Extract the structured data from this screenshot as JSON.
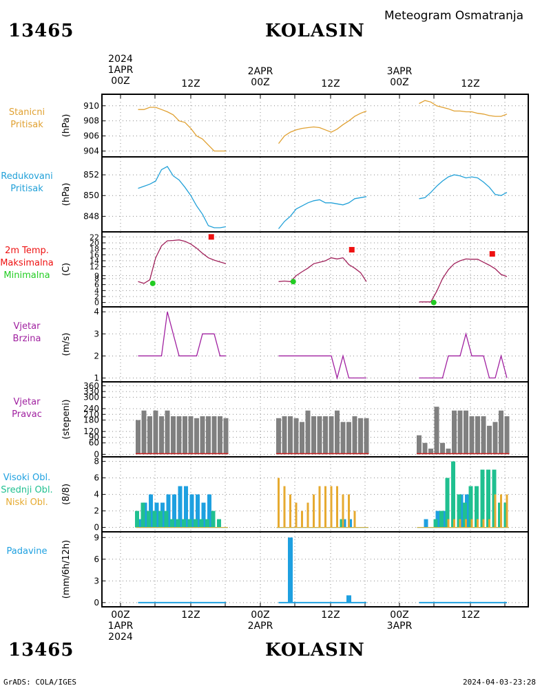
{
  "header": {
    "station_id": "13465",
    "station_name": "KOLASIN",
    "subtitle": "Meteogram Osmatranja"
  },
  "footer": {
    "credit": "GrADS: COLA/IGES",
    "timestamp": "2024-04-03-23:28"
  },
  "time_axis": {
    "top_labels": [
      {
        "lines": [
          "2024",
          "1APR",
          "00Z"
        ]
      },
      {
        "lines": [
          "12Z"
        ]
      },
      {
        "lines": [
          "2APR",
          "00Z"
        ]
      },
      {
        "lines": [
          "12Z"
        ]
      },
      {
        "lines": [
          "3APR",
          "00Z"
        ]
      },
      {
        "lines": [
          "12Z"
        ]
      }
    ],
    "bottom_labels": [
      {
        "lines": [
          "00Z",
          "1APR",
          "2024"
        ]
      },
      {
        "lines": [
          "12Z"
        ]
      },
      {
        "lines": [
          "00Z",
          "2APR"
        ]
      },
      {
        "lines": [
          "12Z"
        ]
      },
      {
        "lines": [
          "00Z",
          "3APR"
        ]
      },
      {
        "lines": [
          "12Z"
        ]
      }
    ]
  },
  "colors": {
    "station_pressure": "#e0a030",
    "reduced_pressure": "#20a0d8",
    "temperature": "#a0205a",
    "tmax": "#ee1111",
    "tmin": "#22cc22",
    "wind": "#a020a0",
    "wind_direction_bar": "#808080",
    "high_cloud": "#1ea0e0",
    "mid_cloud": "#20c090",
    "low_cloud": "#e6aa30",
    "precip": "#1ea0e0"
  },
  "chart_data": [
    {
      "type": "line",
      "label_lines": [
        "Stanicni",
        "Pritisak"
      ],
      "ylabel": "(hPa)",
      "yticks": [
        "904",
        "906",
        "908",
        "910"
      ],
      "ylim": [
        903.5,
        910.8
      ],
      "series": [
        {
          "x": [
            3,
            4,
            5,
            6,
            7,
            8,
            9,
            10,
            11,
            12,
            13,
            14,
            15,
            16,
            17,
            18
          ],
          "y": [
            909.5,
            909.5,
            909.8,
            909.8,
            909.5,
            909.2,
            908.8,
            908.0,
            907.8,
            907.0,
            906.0,
            905.6,
            904.8,
            904.0,
            904.0,
            904.0
          ]
        },
        {
          "x": [
            27,
            28,
            29,
            30,
            31,
            32,
            33,
            34,
            35,
            36,
            37,
            38,
            39,
            40,
            41,
            42
          ],
          "y": [
            905.0,
            906.0,
            906.5,
            906.8,
            907.0,
            907.1,
            907.2,
            907.1,
            906.8,
            906.5,
            906.9,
            907.5,
            908.0,
            908.6,
            909.0,
            909.3
          ]
        },
        {
          "x": [
            51,
            52,
            53,
            54,
            55,
            56,
            57,
            58,
            59,
            60,
            61,
            62,
            63,
            64,
            65,
            66
          ],
          "y": [
            910.3,
            910.7,
            910.5,
            910.0,
            909.8,
            909.6,
            909.3,
            909.3,
            909.2,
            909.2,
            909.0,
            908.9,
            908.7,
            908.6,
            908.6,
            908.9
          ]
        }
      ]
    },
    {
      "type": "line",
      "label_lines": [
        "Redukovani",
        "Pritisak"
      ],
      "ylabel": "(hPa)",
      "yticks": [
        "848",
        "850",
        "852"
      ],
      "ylim": [
        846.7,
        853.2
      ],
      "series": [
        {
          "x": [
            3,
            4,
            5,
            6,
            7,
            8,
            9,
            10,
            11,
            12,
            13,
            14,
            15,
            16,
            17,
            18
          ],
          "y": [
            850.7,
            850.9,
            851.1,
            851.4,
            852.5,
            852.8,
            851.9,
            851.5,
            850.8,
            850.0,
            849.0,
            848.2,
            847.1,
            846.9,
            846.9,
            847.0
          ]
        },
        {
          "x": [
            27,
            28,
            29,
            30,
            31,
            32,
            33,
            34,
            35,
            36,
            37,
            38,
            39,
            40,
            41,
            42
          ],
          "y": [
            846.8,
            847.5,
            848.0,
            848.7,
            849.0,
            849.3,
            849.5,
            849.6,
            849.3,
            849.3,
            849.2,
            849.1,
            849.3,
            849.7,
            849.8,
            849.9
          ]
        },
        {
          "x": [
            51,
            52,
            53,
            54,
            55,
            56,
            57,
            58,
            59,
            60,
            61,
            62,
            63,
            64,
            65,
            66
          ],
          "y": [
            849.7,
            849.8,
            850.3,
            850.9,
            851.4,
            851.8,
            852.0,
            851.9,
            851.7,
            851.8,
            851.7,
            851.3,
            850.8,
            850.1,
            850.0,
            850.3
          ]
        }
      ]
    },
    {
      "type": "line",
      "label_lines": [
        "2m Temp.",
        "Maksimalna",
        "Minimalna"
      ],
      "label_colors": [
        "#ee1111",
        "#ee1111",
        "#22cc22"
      ],
      "ylabel": "(C)",
      "yticks": [
        "0",
        "2",
        "4",
        "6",
        "8",
        "9",
        "12",
        "14",
        "16",
        "18",
        "20",
        "22"
      ],
      "ylim": [
        -1,
        23
      ],
      "series": [
        {
          "x": [
            3,
            4,
            5,
            6,
            7,
            8,
            9,
            10,
            11,
            12,
            13,
            14,
            15,
            16,
            17,
            18
          ],
          "y": [
            7.0,
            6.4,
            7.6,
            15.0,
            19.0,
            20.7,
            20.8,
            21.0,
            20.5,
            19.6,
            18.2,
            16.5,
            15.0,
            14.2,
            13.6,
            13.0
          ]
        },
        {
          "x": [
            27,
            28,
            29,
            30,
            31,
            32,
            33,
            34,
            35,
            36,
            37,
            38,
            39,
            40,
            41,
            42
          ],
          "y": [
            7.0,
            7.2,
            7.0,
            9.0,
            10.3,
            11.5,
            13.0,
            13.5,
            14.0,
            15.0,
            14.6,
            15.0,
            12.7,
            11.5,
            10.0,
            7.0
          ]
        },
        {
          "x": [
            51,
            52,
            53,
            54,
            55,
            56,
            57,
            58,
            59,
            60,
            61,
            62,
            63,
            64,
            65,
            66
          ],
          "y": [
            0.2,
            0.2,
            0.2,
            3.7,
            8.0,
            11.0,
            13.0,
            14.0,
            14.6,
            14.5,
            14.5,
            13.5,
            12.5,
            11.3,
            9.4,
            8.7
          ]
        }
      ],
      "tmax": [
        {
          "x": 15.5,
          "y": 22.0
        },
        {
          "x": 39.5,
          "y": 17.7
        },
        {
          "x": 63.5,
          "y": 16.3
        }
      ],
      "tmin": [
        {
          "x": 5.5,
          "y": 6.4
        },
        {
          "x": 29.5,
          "y": 7.0
        },
        {
          "x": 53.5,
          "y": 0.0
        }
      ]
    },
    {
      "type": "line",
      "label_lines": [
        "Vjetar",
        "Brzina"
      ],
      "ylabel": "(m/s)",
      "yticks": [
        "1",
        "2",
        "3",
        "4"
      ],
      "ylim": [
        0.95,
        4.1
      ],
      "series": [
        {
          "x": [
            3,
            4,
            5,
            6,
            7,
            8,
            9,
            10,
            11,
            12,
            13,
            14,
            15,
            16,
            17,
            18
          ],
          "y": [
            2,
            2,
            2,
            2,
            2,
            4,
            3,
            2,
            2,
            2,
            2,
            3,
            3,
            3,
            2,
            2
          ]
        },
        {
          "x": [
            27,
            28,
            29,
            30,
            31,
            32,
            33,
            34,
            35,
            36,
            37,
            38,
            39,
            40,
            41,
            42
          ],
          "y": [
            2,
            2,
            2,
            2,
            2,
            2,
            2,
            2,
            2,
            2,
            1,
            2,
            1,
            1,
            1,
            1
          ]
        },
        {
          "x": [
            51,
            52,
            53,
            54,
            55,
            56,
            57,
            58,
            59,
            60,
            61,
            62,
            63,
            64,
            65,
            66
          ],
          "y": [
            1,
            1,
            1,
            1,
            1,
            2,
            2,
            2,
            3,
            2,
            2,
            2,
            1,
            1,
            2,
            1
          ]
        }
      ]
    },
    {
      "type": "bar",
      "label_lines": [
        "Vjetar",
        "Pravac"
      ],
      "ylabel": "(stepeni)",
      "yticks": [
        "0",
        "60",
        "90",
        "120",
        "180",
        "210",
        "240",
        "300",
        "330",
        "360"
      ],
      "ylim": [
        -6,
        370
      ],
      "series": [
        {
          "x": [
            3,
            4,
            5,
            6,
            7,
            8,
            9,
            10,
            11,
            12,
            13,
            14,
            15,
            16,
            17,
            18
          ],
          "y": [
            180,
            230,
            200,
            230,
            200,
            230,
            200,
            200,
            200,
            200,
            190,
            200,
            200,
            200,
            200,
            190
          ]
        },
        {
          "x": [
            27,
            28,
            29,
            30,
            31,
            32,
            33,
            34,
            35,
            36,
            37,
            38,
            39,
            40,
            41,
            42
          ],
          "y": [
            190,
            200,
            200,
            190,
            170,
            230,
            200,
            200,
            200,
            200,
            230,
            170,
            170,
            200,
            190,
            190
          ]
        },
        {
          "x": [
            51,
            52,
            53,
            54,
            55,
            56,
            57,
            58,
            59,
            60,
            61,
            62,
            63,
            64,
            65,
            66
          ],
          "y": [
            100,
            60,
            30,
            250,
            60,
            30,
            230,
            230,
            230,
            200,
            200,
            200,
            150,
            170,
            230,
            200
          ]
        }
      ]
    },
    {
      "type": "bar",
      "label_lines": [
        "Visoki Obl.",
        "Srednji Obl.",
        "Niski Obl."
      ],
      "label_colors": [
        "#1ea0e0",
        "#20c090",
        "#e6aa30"
      ],
      "ylabel": "(8/8)",
      "yticks": [
        "0",
        "2",
        "4",
        "6",
        "8"
      ],
      "ylim": [
        -0.2,
        8.3
      ],
      "series": [
        {
          "name": "Visoki Obl.",
          "x": [
            3,
            4,
            5,
            6,
            7,
            8,
            9,
            10,
            11,
            12,
            13,
            14,
            15,
            16,
            17,
            18
          ],
          "y": [
            1,
            3,
            4,
            3,
            3,
            4,
            4,
            5,
            5,
            4,
            4,
            3,
            4,
            0,
            0,
            0
          ]
        },
        {
          "name": "Srednji Obl.",
          "x": [
            3,
            4,
            5,
            6,
            7,
            8,
            9,
            10,
            11,
            12,
            13,
            14,
            15,
            16,
            17,
            18
          ],
          "y": [
            2,
            3,
            2,
            2,
            2,
            2,
            1,
            1,
            1,
            1,
            1,
            1,
            1,
            2,
            1,
            0
          ]
        },
        {
          "name": "Niski Obl.",
          "x": [
            3,
            4,
            5,
            6,
            7,
            8,
            9,
            10,
            11,
            12,
            13,
            14,
            15,
            16,
            17,
            18
          ],
          "y": [
            0,
            0,
            0,
            0,
            0,
            0,
            0,
            0,
            0,
            0,
            0,
            0,
            0,
            0,
            0,
            0
          ]
        },
        {
          "name": "Visoki Obl.",
          "x": [
            27,
            28,
            29,
            30,
            31,
            32,
            33,
            34,
            35,
            36,
            37,
            38,
            39,
            40,
            41,
            42
          ],
          "y": [
            0,
            0,
            0,
            0,
            0,
            0,
            0,
            0,
            0,
            0,
            0,
            1,
            1,
            0,
            0,
            0
          ]
        },
        {
          "name": "Srednji Obl.",
          "x": [
            27,
            28,
            29,
            30,
            31,
            32,
            33,
            34,
            35,
            36,
            37,
            38,
            39,
            40,
            41,
            42
          ],
          "y": [
            0,
            0,
            0,
            0,
            0,
            0,
            0,
            0,
            0,
            0,
            0,
            1,
            0,
            0,
            0,
            0
          ]
        },
        {
          "name": "Niski Obl.",
          "x": [
            27,
            28,
            29,
            30,
            31,
            32,
            33,
            34,
            35,
            36,
            37,
            38,
            39,
            40,
            41,
            42
          ],
          "y": [
            6,
            5,
            4,
            3,
            2,
            3,
            4,
            5,
            5,
            5,
            5,
            4,
            4,
            2,
            0,
            0
          ]
        },
        {
          "name": "Visoki Obl.",
          "x": [
            51,
            52,
            53,
            54,
            55,
            56,
            57,
            58,
            59,
            60,
            61,
            62,
            63,
            64,
            65,
            66
          ],
          "y": [
            0,
            1,
            0,
            2,
            2,
            0,
            0,
            4,
            4,
            0,
            0,
            0,
            0,
            0,
            0,
            0
          ]
        },
        {
          "name": "Srednji Obl.",
          "x": [
            51,
            52,
            53,
            54,
            55,
            56,
            57,
            58,
            59,
            60,
            61,
            62,
            63,
            64,
            65,
            66
          ],
          "y": [
            0,
            0,
            0,
            1,
            2,
            6,
            8,
            4,
            3,
            5,
            5,
            7,
            7,
            7,
            3,
            3
          ]
        },
        {
          "name": "Niski Obl.",
          "x": [
            51,
            52,
            53,
            54,
            55,
            56,
            57,
            58,
            59,
            60,
            61,
            62,
            63,
            64,
            65,
            66
          ],
          "y": [
            0,
            0,
            0,
            0,
            0,
            1,
            1,
            1,
            1,
            1,
            1,
            1,
            1,
            4,
            4,
            4
          ]
        }
      ]
    },
    {
      "type": "bar",
      "label_lines": [
        "Padavine"
      ],
      "ylabel": "(mm/6h/12h)",
      "yticks": [
        "0",
        "3",
        "6",
        "9"
      ],
      "ylim": [
        -0.3,
        9.5
      ],
      "series": [
        {
          "x": [
            29,
            39
          ],
          "y": [
            9,
            1
          ]
        }
      ]
    }
  ]
}
